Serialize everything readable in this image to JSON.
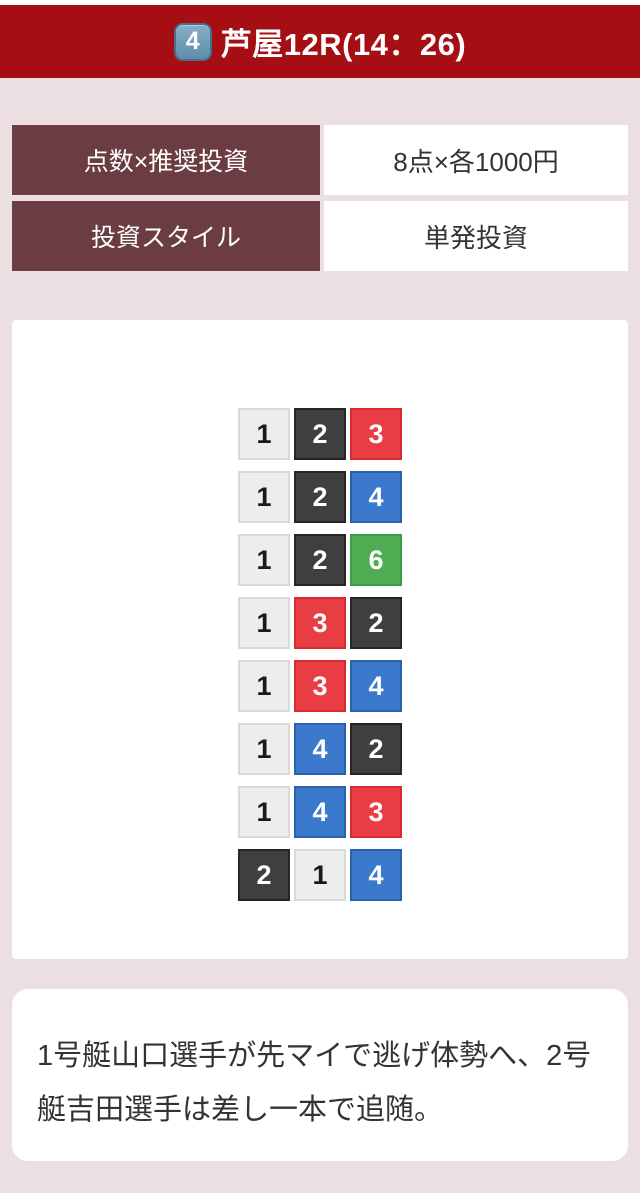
{
  "page": {
    "bg": "#ecdfe2"
  },
  "header": {
    "bg": "#a50e13",
    "race_badge": "4",
    "title": "芦屋12R(14：26)"
  },
  "info_table": {
    "label_bg": "#6b3c41",
    "rows": [
      {
        "label": "点数×推奨投資",
        "value": "8点×各1000円"
      },
      {
        "label": "投資スタイル",
        "value": "単発投資"
      }
    ]
  },
  "bets": {
    "rows": [
      [
        "1",
        "2",
        "3"
      ],
      [
        "1",
        "2",
        "4"
      ],
      [
        "1",
        "2",
        "6"
      ],
      [
        "1",
        "3",
        "2"
      ],
      [
        "1",
        "3",
        "4"
      ],
      [
        "1",
        "4",
        "2"
      ],
      [
        "1",
        "4",
        "3"
      ],
      [
        "2",
        "1",
        "4"
      ]
    ],
    "boat_colors": {
      "1": {
        "bg": "#ededed",
        "border": "#d9d9d9",
        "text": "#1a1a1a"
      },
      "2": {
        "bg": "#3f3f3f",
        "border": "#262626",
        "text": "#ffffff"
      },
      "3": {
        "bg": "#e73d43",
        "border": "#d52b31",
        "text": "#ffffff"
      },
      "4": {
        "bg": "#3b79cc",
        "border": "#2b62ad",
        "text": "#ffffff"
      },
      "6": {
        "bg": "#4ead52",
        "border": "#3f9b44",
        "text": "#ffffff"
      }
    }
  },
  "comment": {
    "text": "1号艇山口選手が先マイで逃げ体勢へ、2号艇吉田選手は差し一本で追随。"
  }
}
